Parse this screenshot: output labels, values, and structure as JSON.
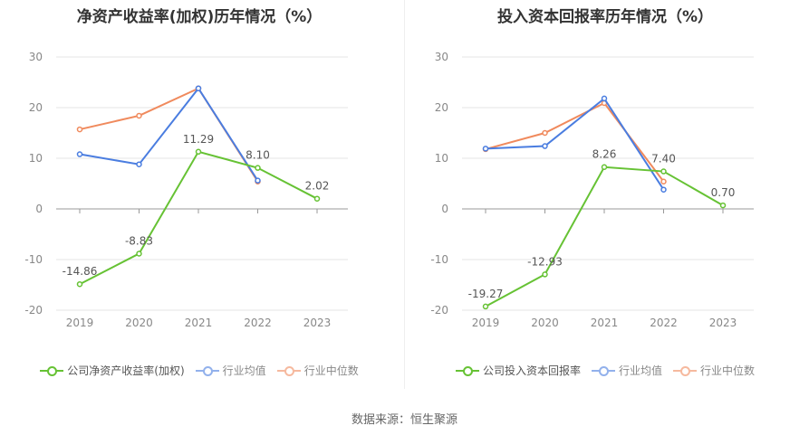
{
  "source_text": "数据来源：恒生聚源",
  "colors": {
    "company": "#66c234",
    "avg": "#4a7de0",
    "median": "#f08a5d",
    "grid": "#e6e6e6",
    "axis": "#999999",
    "text": "#888888"
  },
  "chart_data": [
    {
      "type": "line",
      "title": "净资产收益率(加权)历年情况（%）",
      "x": [
        "2019",
        "2020",
        "2021",
        "2022",
        "2023"
      ],
      "ylim": [
        -20,
        30
      ],
      "yticks": [
        -20,
        -10,
        0,
        10,
        20,
        30
      ],
      "grid": true,
      "legend_position": "bottom",
      "series": [
        {
          "name": "公司净资产收益率(加权)",
          "key": "company",
          "values": [
            -14.86,
            -8.83,
            11.29,
            8.1,
            2.02
          ],
          "labels": [
            "-14.86",
            "-8.83",
            "11.29",
            "8.10",
            "2.02"
          ]
        },
        {
          "name": "行业均值",
          "key": "avg",
          "values": [
            10.8,
            8.8,
            23.8,
            5.6,
            null
          ]
        },
        {
          "name": "行业中位数",
          "key": "median",
          "values": [
            15.7,
            18.4,
            23.8,
            5.4,
            null
          ]
        }
      ]
    },
    {
      "type": "line",
      "title": "投入资本回报率历年情况（%）",
      "x": [
        "2019",
        "2020",
        "2021",
        "2022",
        "2023"
      ],
      "ylim": [
        -20,
        30
      ],
      "yticks": [
        -20,
        -10,
        0,
        10,
        20,
        30
      ],
      "grid": true,
      "legend_position": "bottom",
      "series": [
        {
          "name": "公司投入资本回报率",
          "key": "company",
          "values": [
            -19.27,
            -12.93,
            8.26,
            7.4,
            0.7
          ],
          "labels": [
            "-19.27",
            "-12.93",
            "8.26",
            "7.40",
            "0.70"
          ]
        },
        {
          "name": "行业均值",
          "key": "avg",
          "values": [
            11.9,
            12.4,
            21.8,
            3.8,
            null
          ]
        },
        {
          "name": "行业中位数",
          "key": "median",
          "values": [
            11.8,
            15.0,
            20.9,
            5.4,
            null
          ]
        }
      ]
    }
  ]
}
